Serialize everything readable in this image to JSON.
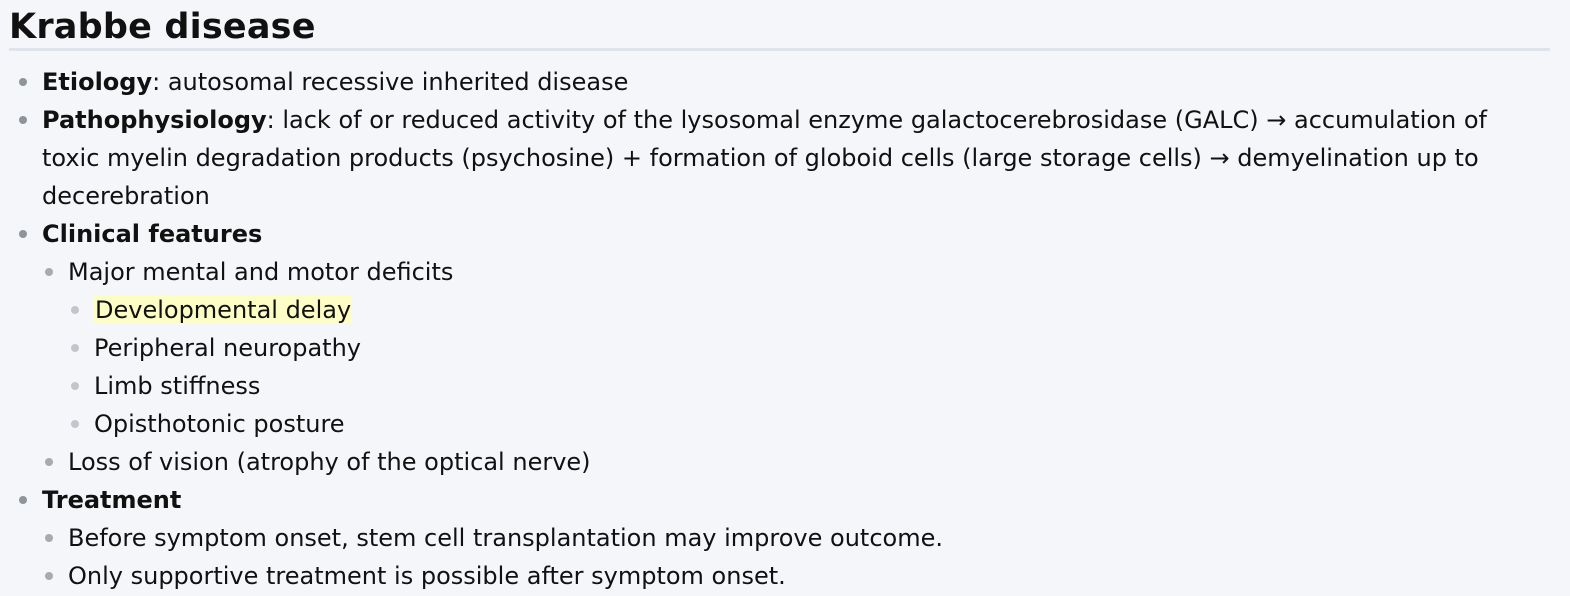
{
  "title": "Krabbe disease",
  "sections": {
    "etiology": {
      "label": "Etiology",
      "text": ": autosomal recessive inherited disease"
    },
    "pathophysiology": {
      "label": "Pathophysiology",
      "text": ": lack of or reduced activity of the lysosomal enzyme galactocerebrosidase (GALC) → accumulation of toxic myelin degradation products (psychosine) + formation of globoid cells (large storage cells) → demyelination up to decerebration"
    },
    "clinical": {
      "label": "Clinical features",
      "major": "Major mental and motor deficits",
      "major_items": [
        "Developmental delay",
        "Peripheral neuropathy",
        "Limb stiffness",
        "Opisthotonic posture"
      ],
      "vision": "Loss of vision (atrophy of the optical nerve)"
    },
    "treatment": {
      "label": "Treatment",
      "items": [
        "Before symptom onset, stem cell transplantation may improve outcome.",
        "Only supportive treatment is possible after symptom onset."
      ]
    }
  },
  "colors": {
    "highlight": "#fdfdc6",
    "background": "#f4f6f9"
  }
}
